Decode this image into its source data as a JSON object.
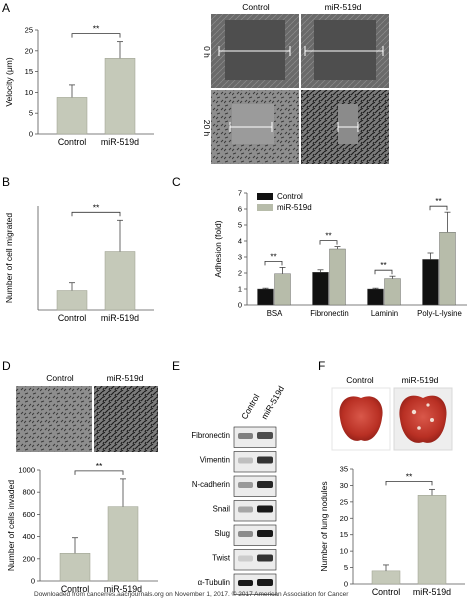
{
  "panels": {
    "A": {
      "letter": "A",
      "col_labels": [
        "Control",
        "miR-519d"
      ],
      "row_labels": [
        "0 h",
        "20 h"
      ]
    },
    "B": {
      "letter": "B"
    },
    "C": {
      "letter": "C"
    },
    "D": {
      "letter": "D",
      "photo_labels": [
        "Control",
        "miR-519d"
      ]
    },
    "E": {
      "letter": "E",
      "lane_labels": [
        "Control",
        "miR-519d"
      ],
      "proteins": [
        "Fibronectin",
        "Vimentin",
        "N-cadherin",
        "Snail",
        "Slug",
        "Twist",
        "α-Tubulin"
      ]
    },
    "F": {
      "letter": "F",
      "photo_labels": [
        "Control",
        "miR-519d"
      ]
    }
  },
  "footer": "Downloaded from cancerres.aacrjournals.org on November 1, 2017. © 2017 American Association for Cancer",
  "colors": {
    "control_bar": "#c5c9b9",
    "mir_bar": "#c5c9b9",
    "dark_bar": "#111111",
    "light_bar": "#b7bcaa",
    "lung_red": "#c43a2e"
  },
  "chart_data": [
    {
      "id": "A",
      "type": "bar",
      "categories": [
        "Control",
        "miR-519d"
      ],
      "values": [
        8.8,
        18.2
      ],
      "errors": [
        3.0,
        4.0
      ],
      "ylabel": "Velocity (μm)",
      "ylim": [
        0,
        25
      ],
      "yticks": [
        0,
        5,
        10,
        15,
        20,
        25
      ],
      "significance": "**"
    },
    {
      "id": "B",
      "type": "bar",
      "categories": [
        "Control",
        "miR-519d"
      ],
      "values": [
        7.5,
        22.5
      ],
      "errors": [
        3.0,
        12.0
      ],
      "ylabel": "Number of cell migrated",
      "ylim": [
        0,
        40
      ],
      "yticks": [],
      "significance": "**"
    },
    {
      "id": "C",
      "type": "bar",
      "categories": [
        "BSA",
        "Fibronectin",
        "Laminin",
        "Poly-L-lysine"
      ],
      "series": [
        {
          "name": "Control",
          "values": [
            1.0,
            2.05,
            1.0,
            2.85
          ],
          "errors": [
            0.05,
            0.15,
            0.05,
            0.4
          ]
        },
        {
          "name": "miR-519d",
          "values": [
            1.95,
            3.5,
            1.65,
            4.55
          ],
          "errors": [
            0.4,
            0.15,
            0.15,
            1.25
          ]
        }
      ],
      "ylabel": "Adhesion (fold)",
      "ylim": [
        0,
        7
      ],
      "yticks": [
        0,
        1,
        2,
        3,
        4,
        5,
        6,
        7
      ],
      "significance": [
        "**",
        "**",
        "**",
        "**"
      ],
      "legend": "top-left"
    },
    {
      "id": "D",
      "type": "bar",
      "categories": [
        "Control",
        "miR-519d"
      ],
      "values": [
        250,
        670
      ],
      "errors": [
        140,
        250
      ],
      "ylabel": "Number of cells invaded",
      "ylim": [
        0,
        1000
      ],
      "yticks": [
        0,
        200,
        400,
        600,
        800,
        1000
      ],
      "significance": "**"
    },
    {
      "id": "F",
      "type": "bar",
      "categories": [
        "Control",
        "miR-519d"
      ],
      "values": [
        4,
        27
      ],
      "errors": [
        1.8,
        1.8
      ],
      "ylabel": "Number of lung nodules",
      "ylim": [
        0,
        35
      ],
      "yticks": [
        0,
        5,
        10,
        15,
        20,
        25,
        30,
        35
      ],
      "significance": "**"
    }
  ]
}
